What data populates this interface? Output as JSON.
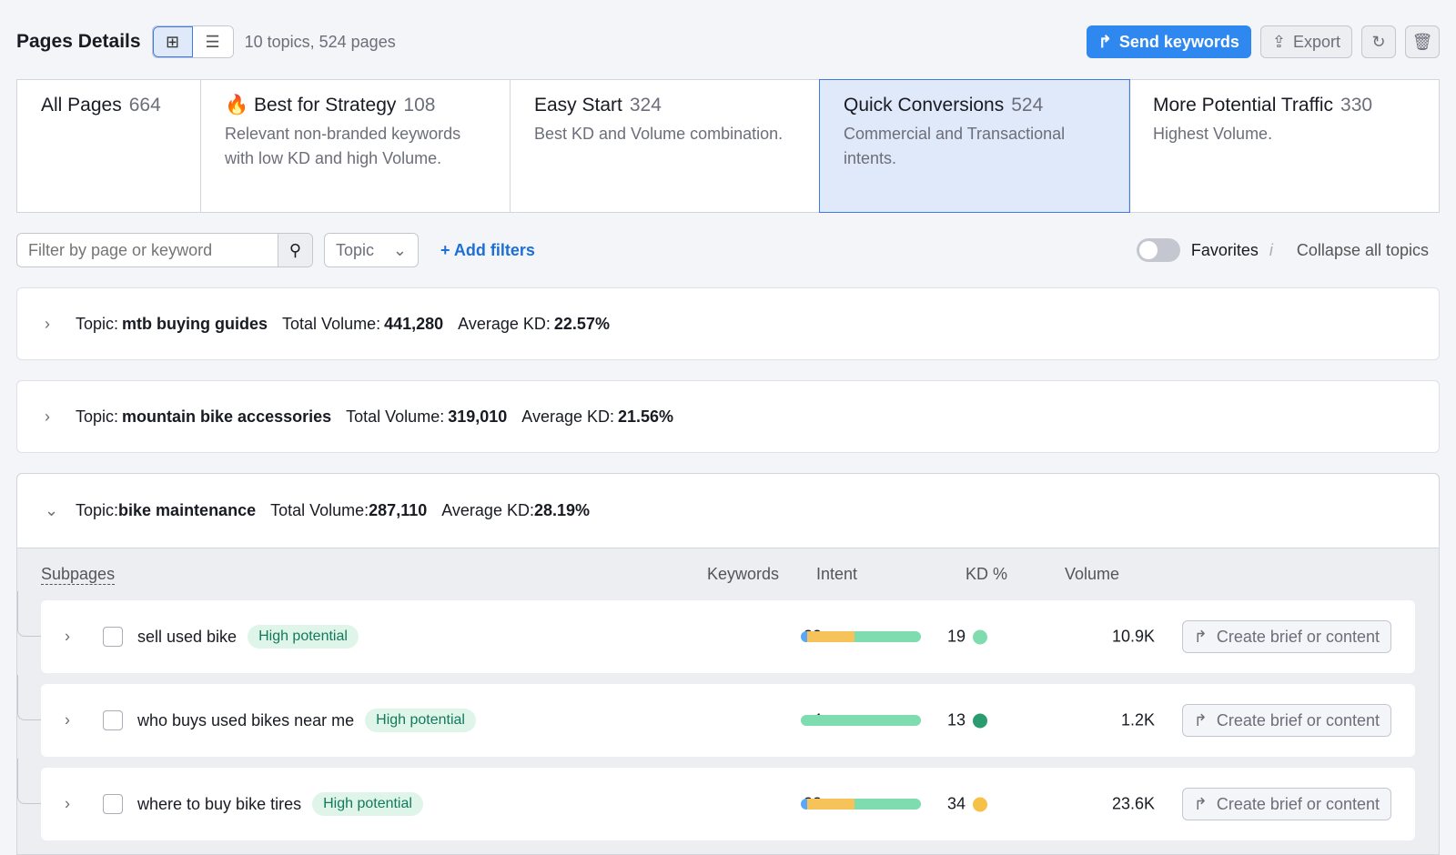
{
  "header": {
    "title": "Pages Details",
    "summary": "10 topics, 524 pages",
    "send_keywords": "Send keywords",
    "export": "Export"
  },
  "tabs": [
    {
      "label": "All Pages",
      "count": "664",
      "desc": ""
    },
    {
      "label": "Best for Strategy",
      "count": "108",
      "desc": "Relevant non-branded keywords with low KD and high Volume."
    },
    {
      "label": "Easy Start",
      "count": "324",
      "desc": "Best KD and Volume combination."
    },
    {
      "label": "Quick Conversions",
      "count": "524",
      "desc": "Commercial and Transactional intents.",
      "active": true
    },
    {
      "label": "More Potential Traffic",
      "count": "330",
      "desc": "Highest Volume."
    }
  ],
  "filters": {
    "search_placeholder": "Filter by page or keyword",
    "topic": "Topic",
    "add_filters": "+ Add filters",
    "favorites": "Favorites",
    "favorites_enabled": false,
    "collapse": "Collapse all topics"
  },
  "labels": {
    "topic": "Topic:",
    "total_volume": "Total Volume:",
    "average_kd": "Average KD:"
  },
  "topics": [
    {
      "name": "mtb buying guides",
      "volume": "441,280",
      "kd": "22.57%"
    },
    {
      "name": "mountain bike accessories",
      "volume": "319,010",
      "kd": "21.56%"
    },
    {
      "name": "bike maintenance",
      "volume": "287,110",
      "kd": "28.19%",
      "expanded": true
    }
  ],
  "columns": {
    "subpages": "Subpages",
    "keywords": "Keywords",
    "intent": "Intent",
    "kd": "KD %",
    "volume": "Volume"
  },
  "subpages": [
    {
      "name": "sell used bike",
      "badge": "High potential",
      "keywords": "30",
      "intent": [
        5,
        40,
        55
      ],
      "kd": "19",
      "kd_color": "#7fdcae",
      "volume": "10.9K",
      "action": "Create brief or content"
    },
    {
      "name": "who buys used bikes near me",
      "badge": "High potential",
      "keywords": "4",
      "intent": [
        0,
        0,
        100
      ],
      "kd": "13",
      "kd_color": "#2b9c6f",
      "volume": "1.2K",
      "action": "Create brief or content"
    },
    {
      "name": "where to buy bike tires",
      "badge": "High potential",
      "keywords": "22",
      "intent": [
        5,
        40,
        55
      ],
      "kd": "34",
      "kd_color": "#f5c146",
      "volume": "23.6K",
      "action": "Create brief or content"
    }
  ],
  "colors": {
    "accent": "#2f87f0",
    "intent_blue": "#5aa8f5",
    "intent_yellow": "#f5c35a",
    "intent_green": "#7fdcae"
  }
}
